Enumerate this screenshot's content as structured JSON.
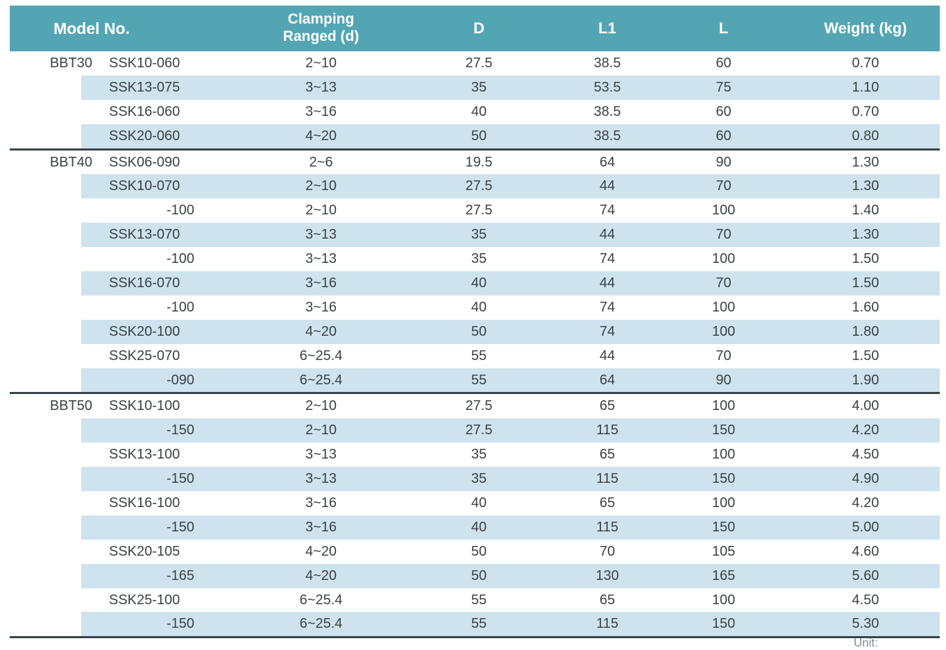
{
  "table": {
    "headers": {
      "model_no": "Model No.",
      "clamping_line1": "Clamping",
      "clamping_line2": "Ranged (d)",
      "d": "D",
      "l1": "L1",
      "l": "L",
      "weight": "Weight (kg)"
    },
    "sections": [
      {
        "group": "BBT30",
        "rows": [
          {
            "model": "SSK10-060",
            "clamping": "2~10",
            "d": "27.5",
            "l1": "38.5",
            "l": "60",
            "weight": "0.70"
          },
          {
            "model": "SSK13-075",
            "clamping": "3~13",
            "d": "35",
            "l1": "53.5",
            "l": "75",
            "weight": "1.10"
          },
          {
            "model": "SSK16-060",
            "clamping": "3~16",
            "d": "40",
            "l1": "38.5",
            "l": "60",
            "weight": "0.70"
          },
          {
            "model": "SSK20-060",
            "clamping": "4~20",
            "d": "50",
            "l1": "38.5",
            "l": "60",
            "weight": "0.80"
          }
        ]
      },
      {
        "group": "BBT40",
        "rows": [
          {
            "model": "SSK06-090",
            "clamping": "2~6",
            "d": "19.5",
            "l1": "64",
            "l": "90",
            "weight": "1.30"
          },
          {
            "model": "SSK10-070",
            "clamping": "2~10",
            "d": "27.5",
            "l1": "44",
            "l": "70",
            "weight": "1.30"
          },
          {
            "model": "-100",
            "clamping": "2~10",
            "d": "27.5",
            "l1": "74",
            "l": "100",
            "weight": "1.40"
          },
          {
            "model": "SSK13-070",
            "clamping": "3~13",
            "d": "35",
            "l1": "44",
            "l": "70",
            "weight": "1.30"
          },
          {
            "model": "-100",
            "clamping": "3~13",
            "d": "35",
            "l1": "74",
            "l": "100",
            "weight": "1.50"
          },
          {
            "model": "SSK16-070",
            "clamping": "3~16",
            "d": "40",
            "l1": "44",
            "l": "70",
            "weight": "1.50"
          },
          {
            "model": "-100",
            "clamping": "3~16",
            "d": "40",
            "l1": "74",
            "l": "100",
            "weight": "1.60"
          },
          {
            "model": "SSK20-100",
            "clamping": "4~20",
            "d": "50",
            "l1": "74",
            "l": "100",
            "weight": "1.80"
          },
          {
            "model": "SSK25-070",
            "clamping": "6~25.4",
            "d": "55",
            "l1": "44",
            "l": "70",
            "weight": "1.50"
          },
          {
            "model": "-090",
            "clamping": "6~25.4",
            "d": "55",
            "l1": "64",
            "l": "90",
            "weight": "1.90"
          }
        ]
      },
      {
        "group": "BBT50",
        "rows": [
          {
            "model": "SSK10-100",
            "clamping": "2~10",
            "d": "27.5",
            "l1": "65",
            "l": "100",
            "weight": "4.00"
          },
          {
            "model": "-150",
            "clamping": "2~10",
            "d": "27.5",
            "l1": "115",
            "l": "150",
            "weight": "4.20"
          },
          {
            "model": "SSK13-100",
            "clamping": "3~13",
            "d": "35",
            "l1": "65",
            "l": "100",
            "weight": "4.50"
          },
          {
            "model": "-150",
            "clamping": "3~13",
            "d": "35",
            "l1": "115",
            "l": "150",
            "weight": "4.90"
          },
          {
            "model": "SSK16-100",
            "clamping": "3~16",
            "d": "40",
            "l1": "65",
            "l": "100",
            "weight": "4.20"
          },
          {
            "model": "-150",
            "clamping": "3~16",
            "d": "40",
            "l1": "115",
            "l": "150",
            "weight": "5.00"
          },
          {
            "model": "SSK20-105",
            "clamping": "4~20",
            "d": "50",
            "l1": "70",
            "l": "105",
            "weight": "4.60"
          },
          {
            "model": "-165",
            "clamping": "4~20",
            "d": "50",
            "l1": "130",
            "l": "165",
            "weight": "5.60"
          },
          {
            "model": "SSK25-100",
            "clamping": "6~25.4",
            "d": "55",
            "l1": "65",
            "l": "100",
            "weight": "4.50"
          },
          {
            "model": "-150",
            "clamping": "6~25.4",
            "d": "55",
            "l1": "115",
            "l": "150",
            "weight": "5.30"
          }
        ]
      }
    ]
  },
  "footnote": "Unit:",
  "colors": {
    "header_bg": "#54a5b4",
    "stripe": "#cee3ed",
    "line": "#384448",
    "text": "#3c4144"
  }
}
